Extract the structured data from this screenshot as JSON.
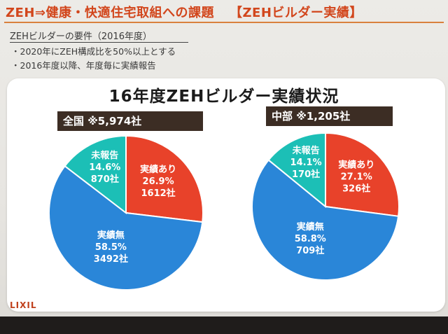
{
  "slide": {
    "title_main": "ZEH⇒健康・快適住宅取組への課題",
    "title_tag": "【ZEHビルダー実績】",
    "requirements_heading": "ZEHビルダーの要件（2016年度）",
    "requirements": [
      "・2020年にZEH構成比を50%以上とする",
      "・2016年度以降、年度毎に実績報告"
    ],
    "logo_text": "LIXIL"
  },
  "chart_data": {
    "type": "pie",
    "title": "16年度ZEHビルダー実績状況",
    "colors": {
      "実績あり": "#e8422a",
      "実績無": "#2a86d8",
      "未報告": "#1cbfb6"
    },
    "charts": [
      {
        "badge": "全国 ※5,974社",
        "slices": [
          {
            "label": "実績あり",
            "percent_text": "26.9%",
            "count_text": "1612社",
            "value": 26.9
          },
          {
            "label": "実績無",
            "percent_text": "58.5%",
            "count_text": "3492社",
            "value": 58.5
          },
          {
            "label": "未報告",
            "percent_text": "14.6%",
            "count_text": "870社",
            "value": 14.6
          }
        ]
      },
      {
        "badge": "中部 ※1,205社",
        "slices": [
          {
            "label": "実績あり",
            "percent_text": "27.1%",
            "count_text": "326社",
            "value": 27.1
          },
          {
            "label": "実績無",
            "percent_text": "58.8%",
            "count_text": "709社",
            "value": 58.8
          },
          {
            "label": "未報告",
            "percent_text": "14.1%",
            "count_text": "170社",
            "value": 14.1
          }
        ]
      }
    ]
  }
}
